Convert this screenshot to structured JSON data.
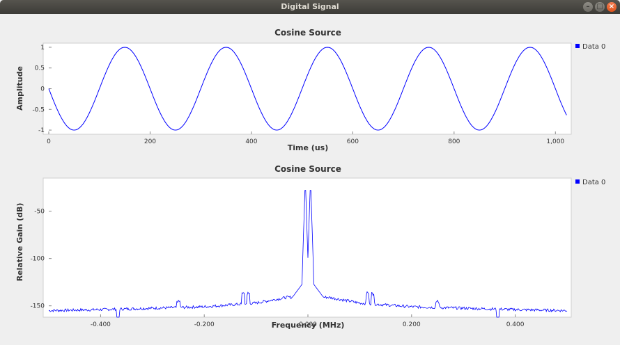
{
  "window": {
    "title": "Digital Signal",
    "buttons": {
      "minimize": "–",
      "maximize": "□",
      "close": "×"
    }
  },
  "colors": {
    "trace": "#0000ff",
    "legend_marker": "#0000ff"
  },
  "chart_data": [
    {
      "type": "line",
      "title": "Cosine Source",
      "xlabel": "Time (us)",
      "ylabel": "Amplitude",
      "xlim": [
        0,
        1023
      ],
      "ylim": [
        -1.1,
        1.1
      ],
      "xticks": [
        0,
        200,
        400,
        600,
        800,
        1000
      ],
      "xtick_labels": [
        "0",
        "200",
        "400",
        "600",
        "800",
        "1,000"
      ],
      "yticks": [
        1,
        0.5,
        0,
        -0.5,
        -1
      ],
      "ytick_labels": [
        "1",
        "0.5",
        "0",
        "-0.5",
        "-1"
      ],
      "legend_position": "top-right",
      "series": [
        {
          "name": "Data 0",
          "function": "cosine",
          "period_us": 200,
          "amplitude": 1,
          "phase_deg": 90,
          "x_range": [
            0,
            1023
          ]
        }
      ]
    },
    {
      "type": "line",
      "title": "Cosine Source",
      "xlabel": "Frequency (MHz)",
      "ylabel": "Relative Gain (dB)",
      "xlim": [
        -0.5,
        0.5
      ],
      "ylim": [
        -162,
        -15
      ],
      "xticks": [
        -0.4,
        -0.2,
        0,
        0.2,
        0.4
      ],
      "xtick_labels": [
        "-0.400",
        "-0.200",
        "0.000",
        "0.200",
        "0.400"
      ],
      "yticks": [
        -50,
        -100,
        -150
      ],
      "ytick_labels": [
        "-50",
        "-100",
        "-150"
      ],
      "legend_position": "top-right",
      "series": [
        {
          "name": "Data 0",
          "noise_floor_db": [
            [
              -0.5,
              -155
            ],
            [
              -0.4,
              -154
            ],
            [
              -0.2,
              -151
            ],
            [
              -0.1,
              -147
            ],
            [
              -0.04,
              -141
            ],
            [
              0.04,
              -141
            ],
            [
              0.1,
              -147
            ],
            [
              0.2,
              -151
            ],
            [
              0.4,
              -154
            ],
            [
              0.5,
              -155
            ]
          ],
          "peaks": [
            {
              "x": -0.005,
              "y": -16
            },
            {
              "x": 0.005,
              "y": -16
            }
          ],
          "spurs": [
            {
              "x": -0.366,
              "y": -167
            },
            {
              "x": -0.25,
              "y": -146
            },
            {
              "x": -0.125,
              "y": -137
            },
            {
              "x": -0.115,
              "y": -137
            },
            {
              "x": 0.115,
              "y": -137
            },
            {
              "x": 0.125,
              "y": -137
            },
            {
              "x": 0.25,
              "y": -146
            },
            {
              "x": 0.366,
              "y": -167
            }
          ]
        }
      ]
    }
  ]
}
